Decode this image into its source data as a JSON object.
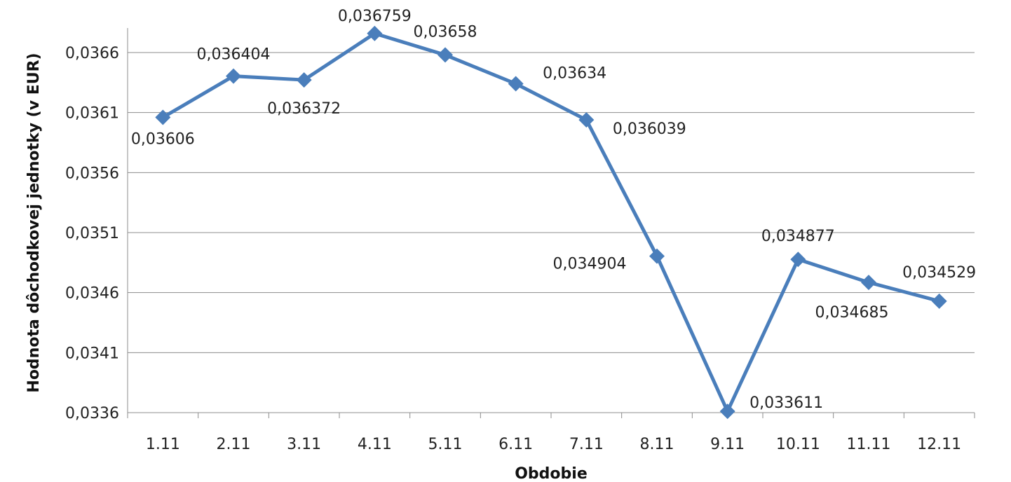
{
  "chart_data": {
    "type": "line",
    "title": "",
    "xlabel": "Obdobie",
    "ylabel": "Hodnota dôchodkovej jednotky (v EUR)",
    "categories": [
      "1.11",
      "2.11",
      "3.11",
      "4.11",
      "5.11",
      "6.11",
      "7.11",
      "8.11",
      "9.11",
      "10.11",
      "11.11",
      "12.11"
    ],
    "series": [
      {
        "values": [
          0.03606,
          0.036404,
          0.036372,
          0.036759,
          0.03658,
          0.03634,
          0.036039,
          0.034904,
          0.033611,
          0.034877,
          0.034685,
          0.034529
        ],
        "labels": [
          "0,03606",
          "0,036404",
          "0,036372",
          "0,036759",
          "0,03658",
          "0,03634",
          "0,036039",
          "0,034904",
          "0,033611",
          "0,034877",
          "0,034685",
          "0,034529"
        ],
        "color": "#4a7ebb",
        "marker": "diamond"
      }
    ],
    "yticks": [
      0.0336,
      0.0341,
      0.0346,
      0.0351,
      0.0356,
      0.0361,
      0.0366
    ],
    "ytick_labels": [
      "0,0336",
      "0,0341",
      "0,0346",
      "0,0351",
      "0,0356",
      "0,0361",
      "0,0366"
    ],
    "ylim": [
      0.0336,
      0.0366
    ],
    "grid": true,
    "legend": "none"
  }
}
